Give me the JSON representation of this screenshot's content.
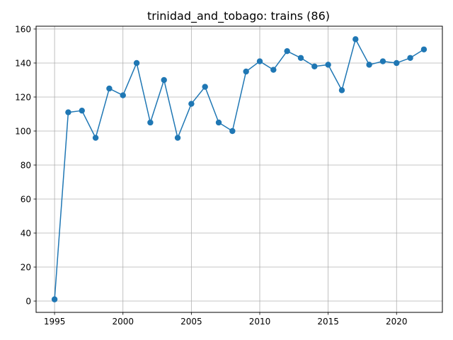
{
  "chart_data": {
    "type": "line",
    "title": "trinidad_and_tobago: trains (86)",
    "xlabel": "",
    "ylabel": "",
    "x": [
      1995,
      1996,
      1997,
      1998,
      1999,
      2000,
      2001,
      2002,
      2003,
      2004,
      2005,
      2006,
      2007,
      2008,
      2009,
      2010,
      2011,
      2012,
      2013,
      2014,
      2015,
      2016,
      2017,
      2018,
      2019,
      2020,
      2021,
      2022
    ],
    "series": [
      {
        "values": [
          1,
          111,
          112,
          96,
          125,
          121,
          140,
          105,
          130,
          96,
          116,
          126,
          105,
          100,
          135,
          141,
          136,
          147,
          143,
          138,
          139,
          124,
          154,
          139,
          141,
          140,
          143,
          148
        ],
        "color": "#1f77b4"
      }
    ],
    "xlim": [
      1993.65,
      2023.35
    ],
    "ylim": [
      -6.65,
      161.65
    ],
    "xticks": [
      1995,
      2000,
      2005,
      2010,
      2015,
      2020
    ],
    "yticks": [
      0,
      20,
      40,
      60,
      80,
      100,
      120,
      140,
      160
    ],
    "grid": true,
    "marker": "circle"
  }
}
